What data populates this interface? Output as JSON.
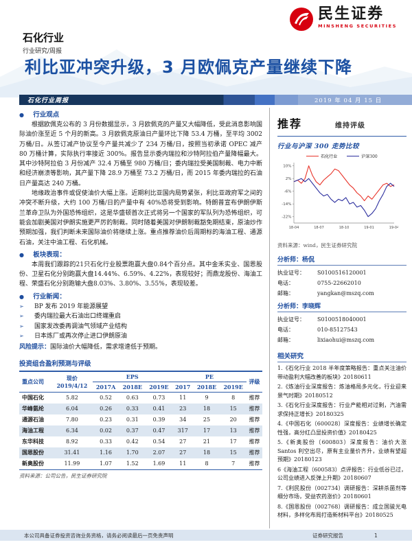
{
  "brand": {
    "name_cn": "民生证券",
    "name_en": "MINSHENG SECURITIES",
    "red": "#d7000f"
  },
  "header": {
    "industry": "石化行业",
    "series": "行业研究/周报",
    "title": "利比亚冲突升级，3 月欧佩克产量继续下降",
    "bar_title": "石化行业周报",
    "date": "2019 年 04 月 15 日"
  },
  "left": {
    "viewpoint": {
      "heading": "行业观点",
      "para1": "根据欧佩克公布的 3 月份数据显示，3 月欧佩克的产量又大幅降低，受此消息影响国际油价涨至近 5 个月的新高。3 月欧佩克原油日产量环比下降 53.4 万桶，至平均 3002 万桶/日。从签订减产协议至今产量共减少了 234 万桶/日，按照当初承诺 OPEC 减产 80 万桶计算，实际执行率接近 300%。报告显示委内瑞拉和沙特阿拉伯产量降幅最大。其中沙特阿拉伯 3 月份减产 32.4 万桶至 980 万桶/日；委内瑞拉受美国制裁、电力中断和经济崩溃等影响，其产量下降 28.9 万桶至 73.2 万桶/日，而 2015 年委内瑞拉的石油日产量高达 240 万桶。",
      "para2": "地缘政治事件或促使油价大幅上涨。近期利比亚国内局势紧张，利比亚政府军之间的冲突不断升级，大约 100 万桶/日的产量中有 40%恐将受到影响。特朗普宣布伊朗伊斯兰革命卫队为外国恐怖组织，这是华盛顿首次正式将另一个国家的军队列为恐怖组织，可能会加剧美国对伊朗实施更严厉的制裁。同时随着美国对伊朗制裁豁免期结束，原油炒作预期加强，我们判断未来国际油价将继续上涨。重点推荐油价后周期标的海油工程、通源石油，关注中油工程、石化机械。"
    },
    "performance": {
      "heading": "板块表现：",
      "para": "本周我们跟踪的21只石化行业股票跑赢大盘0.84个百分点。其中金禾实业、国恩股份、卫星石化分别跑赢大盘14.44%、6.59%、4.22%，表现较好；而鼎龙股份、海油工程、荣盛石化分别跑输大盘8.03%、3.80%、3.55%，表现较差。"
    },
    "news": {
      "heading": "行业新闻：",
      "items": [
        "BP 发布 2019 年能源展望",
        "委内瑞拉最大石油出口终端重启",
        "国家发改委再调油气领域产业结构",
        "日本炼厂或再次停止进口伊朗原油"
      ]
    },
    "risk": {
      "label": "风险提示：",
      "text": "国际油价大幅降低，需求增速低于预期。"
    }
  },
  "table": {
    "title": "投资组合盈利预测与评级",
    "head": {
      "company": "重点公司",
      "price1": "现价",
      "price2": "2019/4/12",
      "eps": "EPS",
      "pe": "PE",
      "rating": "评级"
    },
    "sub_headers": [
      "2017A",
      "2018E",
      "2019E",
      "2017",
      "2018E",
      "2019E"
    ],
    "rows": [
      {
        "name": "中国石化",
        "price": "5.82",
        "eps": [
          "0.52",
          "0.63",
          "0.73"
        ],
        "pe": [
          "11",
          "9",
          "8"
        ],
        "rating": "推荐"
      },
      {
        "name": "华峰氨纶",
        "price": "6.04",
        "eps": [
          "0.26",
          "0.33",
          "0.41"
        ],
        "pe": [
          "23",
          "18",
          "15"
        ],
        "rating": "推荐"
      },
      {
        "name": "通源石油",
        "price": "7.80",
        "eps": [
          "0.23",
          "0.31",
          "0.39"
        ],
        "pe": [
          "34",
          "25",
          "20"
        ],
        "rating": "推荐"
      },
      {
        "name": "海油工程",
        "price": "6.34",
        "eps": [
          "0.02",
          "0.37",
          "0.47"
        ],
        "pe": [
          "317",
          "17",
          "13"
        ],
        "rating": "推荐"
      },
      {
        "name": "东华科技",
        "price": "8.92",
        "eps": [
          "0.33",
          "0.42",
          "0.54"
        ],
        "pe": [
          "27",
          "21",
          "17"
        ],
        "rating": "推荐"
      },
      {
        "name": "国恩股份",
        "price": "31.41",
        "eps": [
          "1.16",
          "1.70",
          "2.07"
        ],
        "pe": [
          "27",
          "18",
          "15"
        ],
        "rating": "推荐"
      },
      {
        "name": "新奥股份",
        "price": "11.99",
        "eps": [
          "1.07",
          "1.52",
          "1.69"
        ],
        "pe": [
          "11",
          "8",
          "7"
        ],
        "rating": "推荐"
      }
    ],
    "source": "资料来源：公司公告，民生证券研究院"
  },
  "right": {
    "rating": "推荐",
    "rating_action": "维持评级",
    "chart_source": "资料来源：wind，民生证券研究院",
    "analysts": [
      {
        "name": "分析师：杨侃",
        "cert_label": "执业证号：",
        "cert": "S0100516120001",
        "tel_label": "电话：",
        "tel": "0755-22662010",
        "mail_label": "邮箱：",
        "mail": "yangkan@mszq.com"
      },
      {
        "name": "分析师：李晓辉",
        "cert_label": "执业证号：",
        "cert": "S0100518040001",
        "tel_label": "电话：",
        "tel": "010-85127543",
        "mail_label": "邮箱：",
        "mail": "lixiaohui@mszq.com"
      }
    ],
    "related": {
      "title": "相关研究",
      "items": [
        "1.《石化行业 2018 半年度策略报告：重点关注油价带动盈利大幅改善的板块》20180611",
        "2.《炼油行业深度报告：炼油格局多元化，行业迎来景气时期》20180512",
        "3.《石化行业深度报告：行业产能相对过剩，汽油需求保持正增长》20180325",
        "4.《中国石化（600028）深度报告：业绩增长确定性强，高分红凸显投资价值》20180425",
        "5.《新奥股份（600803）深度报告：油价大涨 Santos 利空出尽，原有主业量价齐升，业绩有望超预期》20180123",
        "6《海油工程（600583）点评报告：行业低谷已过，公司业绩进入反弹上升期》20180607",
        "7.《利民股份（002734）调研报告：深耕杀菌剂等细分市场，受益农药涨价》20180601",
        "8.《国恩股份（002768）调研报告：成立国骏光电材料，多样化布局打造新材料平台》20180525"
      ]
    }
  },
  "chart_data": {
    "type": "line",
    "title": "行业与沪深 300 走势比较",
    "x_ticks": [
      "18-04",
      "18-07",
      "18-10",
      "19-01",
      "19-04"
    ],
    "y_ticks": [
      "10%",
      "2%",
      "-6%",
      "-14%",
      "-22%"
    ],
    "ylim": [
      -26,
      12
    ],
    "grid": false,
    "legend_position": "top",
    "series": [
      {
        "name": "石化行业",
        "color": "#e8342a",
        "values": [
          0,
          1,
          -1,
          2,
          10,
          4,
          0,
          -2,
          1,
          3,
          5,
          8,
          7,
          4,
          1,
          -2,
          -4,
          -7,
          -9,
          -12,
          -9,
          -11,
          -8,
          -5,
          -2,
          -1,
          -3,
          -2
        ]
      },
      {
        "name": "沪深300",
        "color": "#2b2e9e",
        "values": [
          0,
          1,
          2,
          0,
          2,
          -1,
          -4,
          -7,
          -9,
          -8,
          -11,
          -13,
          -11,
          -12,
          -10,
          -14,
          -13,
          -16,
          -15,
          -18,
          -22,
          -20,
          -17,
          -12,
          -8,
          -3,
          -1,
          -3
        ]
      }
    ]
  },
  "footer": {
    "disclaimer": "本公司具备证券投资咨询业务资格，请务必阅读最后一页免责声明",
    "doc_type": "证券研究报告",
    "page": "1"
  }
}
